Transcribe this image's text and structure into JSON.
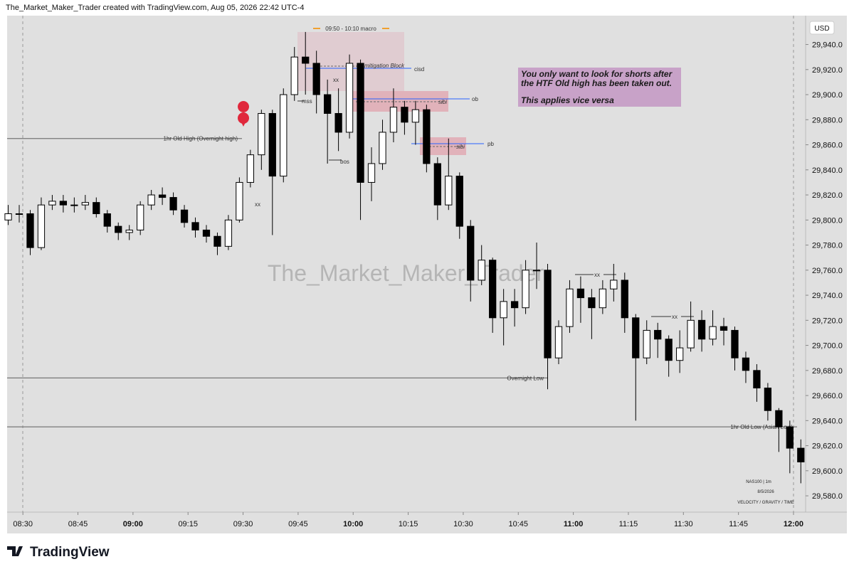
{
  "chart_data": {
    "type": "candlestick",
    "title": "The_Market_Maker_Trader created with TradingView.com, Aug 05, 2026 22:42 UTC-4",
    "watermark": "The_Market_Maker_Trader",
    "currency": "USD",
    "x": [
      506,
      509,
      512,
      515,
      518,
      521,
      524,
      527,
      530,
      533,
      536,
      539,
      542,
      545,
      548,
      551,
      554,
      557,
      560,
      563,
      566,
      569,
      572,
      575,
      578,
      581,
      584,
      587,
      590,
      593,
      596,
      599,
      602,
      605,
      608,
      611,
      614,
      617,
      620,
      623,
      626,
      629,
      632,
      635,
      638,
      641,
      644,
      647,
      650,
      653,
      656,
      659,
      662,
      665,
      668,
      671,
      674,
      677,
      680,
      683,
      686,
      689,
      692,
      695,
      698,
      701,
      704,
      707,
      710,
      713,
      716,
      719,
      722
    ],
    "open": [
      29800,
      29805,
      29805,
      29778,
      29812,
      29815,
      29812,
      29812,
      29814,
      29805,
      29795,
      29790,
      29792,
      29812,
      29820,
      29818,
      29808,
      29798,
      29792,
      29787,
      29779,
      29800,
      29830,
      29852,
      29885,
      29835,
      29900,
      29930,
      29925,
      29900,
      29885,
      29870,
      29925,
      29830,
      29845,
      29870,
      29890,
      29878,
      29888,
      29845,
      29812,
      29835,
      29795,
      29752,
      29768,
      29722,
      29735,
      29730,
      29760,
      29760,
      29690,
      29715,
      29745,
      29738,
      29730,
      29745,
      29752,
      29722,
      29690,
      29712,
      29705,
      29688,
      29698,
      29720,
      29705,
      29715,
      29712,
      29690,
      29680,
      29666,
      29648,
      29635,
      29618
    ],
    "high": [
      29812,
      29812,
      29808,
      29818,
      29820,
      29820,
      29818,
      29820,
      29818,
      29808,
      29798,
      29796,
      29815,
      29824,
      29826,
      29822,
      29812,
      29802,
      29796,
      29790,
      29804,
      29834,
      29856,
      29888,
      29888,
      29905,
      29938,
      29950,
      29935,
      29912,
      29905,
      29932,
      29928,
      29858,
      29880,
      29905,
      29895,
      29895,
      29892,
      29850,
      29865,
      29838,
      29800,
      29780,
      29770,
      29745,
      29745,
      29768,
      29782,
      29765,
      29720,
      29752,
      29755,
      29745,
      29752,
      29765,
      29758,
      29725,
      29720,
      29718,
      29708,
      29712,
      29735,
      29728,
      29728,
      29722,
      29715,
      29695,
      29685,
      29670,
      29650,
      29640,
      29625
    ],
    "low": [
      29796,
      29798,
      29772,
      29776,
      29808,
      29806,
      29806,
      29808,
      29802,
      29790,
      29784,
      29784,
      29788,
      29808,
      29812,
      29804,
      29794,
      29786,
      29782,
      29772,
      29776,
      29798,
      29826,
      29840,
      29788,
      29830,
      29895,
      29900,
      29885,
      29845,
      29855,
      29865,
      29800,
      29815,
      29840,
      29862,
      29868,
      29860,
      29838,
      29800,
      29808,
      29785,
      29735,
      29748,
      29710,
      29700,
      29715,
      29725,
      29745,
      29665,
      29685,
      29710,
      29718,
      29705,
      29725,
      29735,
      29710,
      29640,
      29685,
      29690,
      29675,
      29678,
      29695,
      29695,
      29700,
      29700,
      29680,
      29670,
      29655,
      29640,
      29615,
      29598,
      29590
    ],
    "close": [
      29805,
      29805,
      29778,
      29812,
      29815,
      29812,
      29812,
      29814,
      29805,
      29795,
      29790,
      29792,
      29812,
      29820,
      29818,
      29808,
      29798,
      29792,
      29787,
      29779,
      29800,
      29830,
      29852,
      29885,
      29835,
      29900,
      29930,
      29925,
      29900,
      29885,
      29870,
      29925,
      29830,
      29845,
      29870,
      29890,
      29878,
      29888,
      29845,
      29812,
      29835,
      29795,
      29752,
      29768,
      29722,
      29735,
      29730,
      29760,
      29760,
      29690,
      29715,
      29745,
      29738,
      29730,
      29745,
      29752,
      29722,
      29690,
      29712,
      29705,
      29688,
      29698,
      29720,
      29705,
      29715,
      29712,
      29690,
      29680,
      29666,
      29648,
      29635,
      29618,
      29607
    ],
    "up_color": "#ffffff",
    "down_color": "#000000",
    "xlim": [
      505.7,
      723.3
    ],
    "xticks": [
      {
        "value": 510,
        "label": "08:30"
      },
      {
        "value": 525,
        "label": "08:45"
      },
      {
        "value": 540,
        "label": "09:00"
      },
      {
        "value": 555,
        "label": "09:15"
      },
      {
        "value": 570,
        "label": "09:30"
      },
      {
        "value": 585,
        "label": "09:45"
      },
      {
        "value": 600,
        "label": "10:00"
      },
      {
        "value": 615,
        "label": "10:15"
      },
      {
        "value": 630,
        "label": "10:30"
      },
      {
        "value": 645,
        "label": "10:45"
      },
      {
        "value": 660,
        "label": "11:00"
      },
      {
        "value": 675,
        "label": "11:15"
      },
      {
        "value": 690,
        "label": "11:30"
      },
      {
        "value": 705,
        "label": "11:45"
      },
      {
        "value": 720,
        "label": "12:00"
      }
    ],
    "ylim": [
      29567,
      29963
    ],
    "yticks": [
      {
        "value": 29580,
        "label": "29,580.0"
      },
      {
        "value": 29600,
        "label": "29,600.0"
      },
      {
        "value": 29620,
        "label": "29,620.0"
      },
      {
        "value": 29640,
        "label": "29,640.0"
      },
      {
        "value": 29660,
        "label": "29,660.0"
      },
      {
        "value": 29680,
        "label": "29,680.0"
      },
      {
        "value": 29700,
        "label": "29,700.0"
      },
      {
        "value": 29720,
        "label": "29,720.0"
      },
      {
        "value": 29740,
        "label": "29,740.0"
      },
      {
        "value": 29760,
        "label": "29,760.0"
      },
      {
        "value": 29780,
        "label": "29,780.0"
      },
      {
        "value": 29800,
        "label": "29,800.0"
      },
      {
        "value": 29820,
        "label": "29,820.0"
      },
      {
        "value": 29840,
        "label": "29,840.0"
      },
      {
        "value": 29860,
        "label": "29,860.0"
      },
      {
        "value": 29880,
        "label": "29,880.0"
      },
      {
        "value": 29900,
        "label": "29,900.0"
      },
      {
        "value": 29920,
        "label": "29,920.0"
      },
      {
        "value": 29940,
        "label": "29,940.0"
      }
    ],
    "levels": [
      {
        "label": "1hr Old  High (Overnight high)",
        "value": 29865
      },
      {
        "label": "Overnight Low",
        "value": 29674
      },
      {
        "label": "1hr Old  Low (Asian Low)",
        "value": 29635
      }
    ],
    "annotations": [
      "09:50 - 10:10 macro",
      "mitigation Block",
      "cisd",
      "ob",
      "pb",
      "sibi",
      "sibi",
      "mss",
      "xx",
      "bos",
      "xx",
      "xx",
      "xx"
    ],
    "note": [
      "You only want to look for shorts after",
      "the HTF Old high has been taken out.",
      "This applies vice versa"
    ],
    "branding": [
      "NAS100  |  1m",
      "8/5/2026",
      "VELOCITY / GRAVITY / TIME"
    ],
    "footer": "TradingView"
  }
}
